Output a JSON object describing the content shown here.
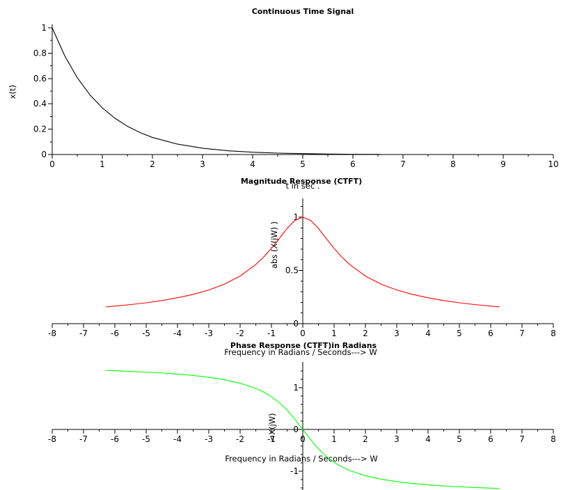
{
  "chart_data": [
    {
      "type": "line",
      "title": "Continuous Time Signal",
      "xlabel": "t in sec .",
      "ylabel": "x(t)",
      "xlim": [
        0,
        10
      ],
      "ylim": [
        0,
        1
      ],
      "xticks": [
        "0",
        "1",
        "2",
        "3",
        "4",
        "5",
        "6",
        "7",
        "8",
        "9",
        "10"
      ],
      "yticks": [
        "0",
        "0.2",
        "0.4",
        "0.6",
        "0.8",
        "1"
      ],
      "grid": false,
      "series": [
        {
          "color": "#000000",
          "x": [
            0,
            0.25,
            0.5,
            0.75,
            1,
            1.25,
            1.5,
            1.75,
            2,
            2.5,
            3,
            3.5,
            4,
            4.5,
            5,
            5.5,
            6,
            6.55
          ],
          "y": [
            1,
            0.779,
            0.607,
            0.472,
            0.368,
            0.287,
            0.223,
            0.174,
            0.135,
            0.082,
            0.05,
            0.03,
            0.018,
            0.011,
            0.007,
            0.004,
            0.002,
            0.001
          ]
        }
      ]
    },
    {
      "type": "line",
      "title": "Magnitude Response (CTFT)",
      "xlabel": "Frequency in Radians / Seconds---> W",
      "ylabel": "abs (X(jW) )",
      "xlim": [
        -8,
        8
      ],
      "ylim": [
        0,
        1.2
      ],
      "xticks": [
        "-8",
        "-7",
        "-6",
        "-5",
        "-4",
        "-3",
        "-2",
        "-1",
        "0",
        "1",
        "2",
        "3",
        "4",
        "5",
        "6",
        "7",
        "8"
      ],
      "yticks": [
        "0",
        "0.5",
        "1"
      ],
      "grid": false,
      "series": [
        {
          "color": "#ff0000",
          "x": [
            -6.28,
            -5.5,
            -5,
            -4.5,
            -4,
            -3.5,
            -3,
            -2.5,
            -2,
            -1.5,
            -1.25,
            -1,
            -0.75,
            -0.5,
            -0.25,
            0,
            0.25,
            0.5,
            0.75,
            1,
            1.25,
            1.5,
            2,
            2.5,
            3,
            3.5,
            4,
            4.5,
            5,
            5.5,
            6.28
          ],
          "y": [
            0.157,
            0.179,
            0.196,
            0.217,
            0.243,
            0.275,
            0.316,
            0.371,
            0.447,
            0.555,
            0.625,
            0.707,
            0.8,
            0.894,
            0.97,
            1,
            0.97,
            0.894,
            0.8,
            0.707,
            0.625,
            0.555,
            0.447,
            0.371,
            0.316,
            0.275,
            0.243,
            0.217,
            0.196,
            0.179,
            0.157
          ]
        }
      ]
    },
    {
      "type": "line",
      "title": "Phase Response (CTFT)in Radians",
      "xlabel": "Frequency in Radians / Seconds---> W",
      "ylabel": "<X(jW)",
      "xlim": [
        -8,
        8
      ],
      "ylim": [
        -1.57,
        1.57
      ],
      "xticks": [
        "-8",
        "-7",
        "-6",
        "-5",
        "-4",
        "-3",
        "-2",
        "-1",
        "0",
        "1",
        "2",
        "3",
        "4",
        "5",
        "6",
        "7",
        "8"
      ],
      "yticks": [
        "-1",
        "0",
        "1"
      ],
      "grid": false,
      "series": [
        {
          "color": "#00ff00",
          "x": [
            -6.28,
            -5.5,
            -5,
            -4.5,
            -4,
            -3.5,
            -3,
            -2.5,
            -2,
            -1.5,
            -1.25,
            -1,
            -0.75,
            -0.5,
            -0.25,
            0,
            0.25,
            0.5,
            0.75,
            1,
            1.25,
            1.5,
            2,
            2.5,
            3,
            3.5,
            4,
            4.5,
            5,
            5.5,
            6.28
          ],
          "y": [
            1.413,
            1.391,
            1.373,
            1.352,
            1.326,
            1.292,
            1.249,
            1.19,
            1.107,
            0.983,
            0.896,
            0.785,
            0.644,
            0.464,
            0.245,
            0,
            -0.245,
            -0.464,
            -0.644,
            -0.785,
            -0.896,
            -0.983,
            -1.107,
            -1.19,
            -1.249,
            -1.292,
            -1.326,
            -1.352,
            -1.373,
            -1.391,
            -1.413
          ]
        }
      ]
    }
  ]
}
